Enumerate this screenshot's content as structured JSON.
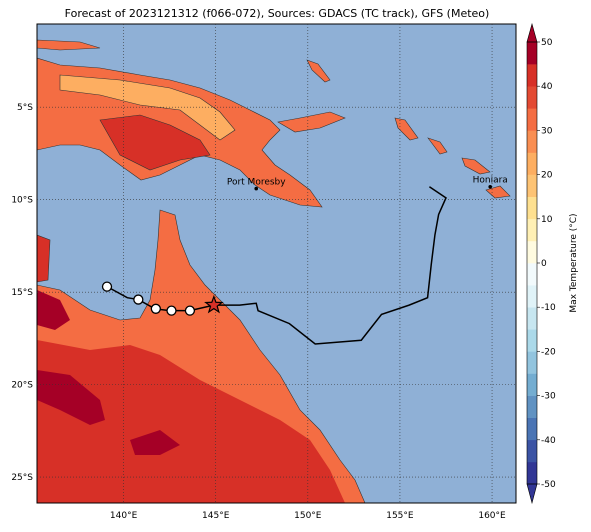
{
  "map": {
    "title": "Forecast of 2023121312 (f066-072), Sources: GDACS (TC track), GFS (Meteo)",
    "xlim": [
      135.3,
      161.3
    ],
    "ylim": [
      -0.5,
      -26.4
    ],
    "xticks": [
      {
        "value": 140,
        "label": "140°E"
      },
      {
        "value": 145,
        "label": "145°E"
      },
      {
        "value": 150,
        "label": "150°E"
      },
      {
        "value": 155,
        "label": "155°E"
      },
      {
        "value": 160,
        "label": "160°E"
      }
    ],
    "yticks": [
      {
        "value": -5,
        "label": "5°S"
      },
      {
        "value": -10,
        "label": "10°S"
      },
      {
        "value": -15,
        "label": "15°S"
      },
      {
        "value": -20,
        "label": "20°S"
      },
      {
        "value": -25,
        "label": "25°S"
      }
    ],
    "grid": true,
    "places": [
      {
        "name": "Port Moresby",
        "lon": 147.2,
        "lat": -9.4
      },
      {
        "name": "Honiara",
        "lon": 159.9,
        "lat": -9.3
      }
    ],
    "track": {
      "lon": [
        156.6,
        157.5,
        157.1,
        156.9,
        156.7,
        156.5,
        155.5,
        154.0,
        152.9,
        150.4,
        149.0,
        147.3,
        147.2,
        146.3,
        144.9,
        143.6,
        142.5,
        141.7,
        140.8,
        140.2,
        139.1
      ],
      "lat": [
        -9.3,
        -9.9,
        -10.8,
        -11.9,
        -13.5,
        -15.3,
        -15.7,
        -16.2,
        -17.6,
        -17.8,
        -16.7,
        -16.0,
        -15.6,
        -15.7,
        -15.7,
        -16.0,
        -16.0,
        -15.9,
        -15.4,
        -15.3,
        -14.7
      ]
    },
    "markers": {
      "lon": [
        139.1,
        140.8,
        141.75,
        142.6,
        143.6
      ],
      "lat": [
        -14.7,
        -15.4,
        -15.9,
        -16.0,
        -16.0
      ]
    },
    "current": {
      "lon": 144.9,
      "lat": -15.7
    },
    "colorbar": {
      "label": "Max Temperature (°C)",
      "lim": [
        -50,
        50
      ],
      "ticks": [
        -50,
        -40,
        -30,
        -20,
        -10,
        0,
        10,
        20,
        30,
        40,
        50
      ],
      "colors": [
        "#313695",
        "#3b53a4",
        "#4a74b4",
        "#6092c2",
        "#74add1",
        "#92c4de",
        "#abd9e9",
        "#c7e6f0",
        "#e0f3f8",
        "#f2fafc",
        "#fffbe0",
        "#fff0b5",
        "#fee090",
        "#fdc374",
        "#fdae61",
        "#f98e52",
        "#f46d43",
        "#e34a33",
        "#d73027",
        "#a50026"
      ]
    }
  }
}
